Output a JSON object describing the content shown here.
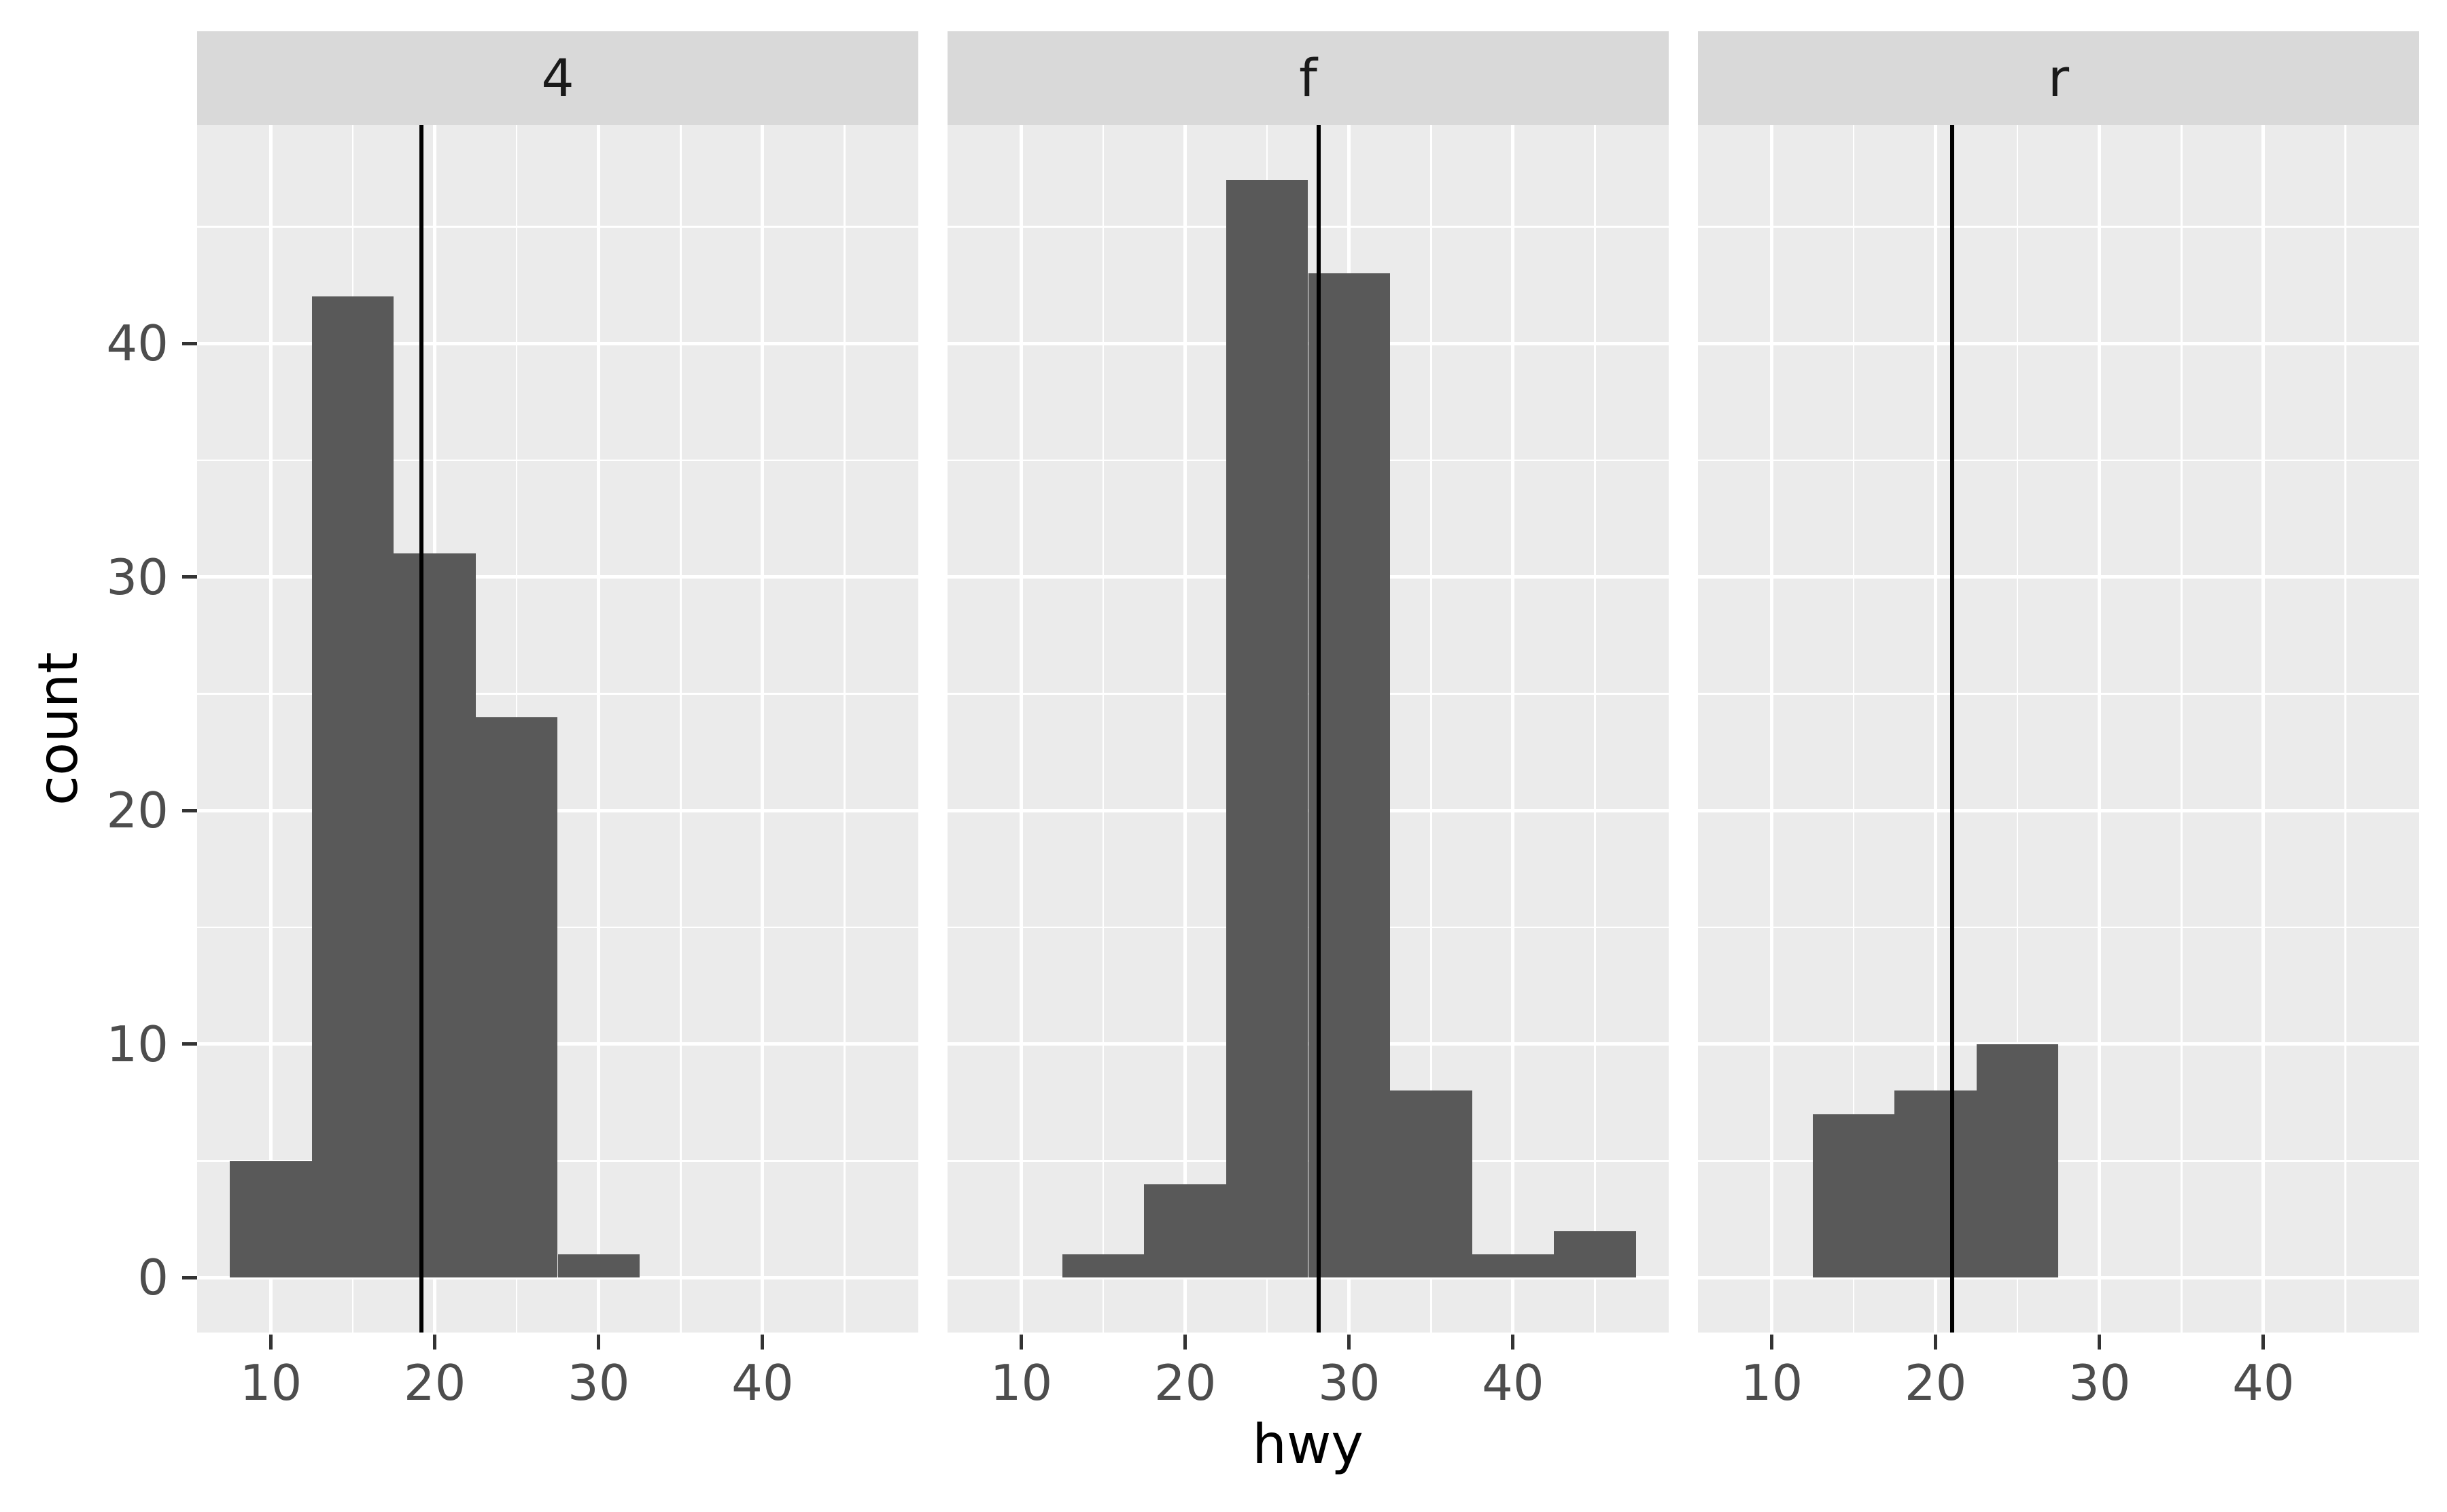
{
  "chart_data": {
    "type": "bar",
    "subtype": "faceted-histogram",
    "title": "",
    "xlabel": "hwy",
    "ylabel": "count",
    "facet_variable_values": [
      "4",
      "f",
      "r"
    ],
    "x_domain": [
      5.5,
      49.5
    ],
    "y_domain": [
      -2.35,
      49.35
    ],
    "x_major_ticks": [
      10,
      20,
      30,
      40
    ],
    "x_minor_gridlines": [
      15,
      25,
      35,
      45
    ],
    "y_major_ticks": [
      0,
      10,
      20,
      30,
      40
    ],
    "y_minor_gridlines": [
      5,
      15,
      25,
      35,
      45
    ],
    "binwidth": 5,
    "grid": "on",
    "legend": "none",
    "facets": [
      {
        "label": "4",
        "bins_start": 7.5,
        "bin_edges": [
          7.5,
          12.5,
          17.5,
          22.5,
          27.5,
          32.5
        ],
        "counts": [
          5,
          42,
          31,
          24,
          1
        ],
        "mean_line_x": 19.17
      },
      {
        "label": "f",
        "bins_start": 12.5,
        "bin_edges": [
          12.5,
          17.5,
          22.5,
          27.5,
          32.5,
          37.5,
          42.5,
          47.5
        ],
        "counts": [
          1,
          4,
          47,
          43,
          8,
          1,
          2
        ],
        "mean_line_x": 28.16
      },
      {
        "label": "r",
        "bins_start": 12.5,
        "bin_edges": [
          12.5,
          17.5,
          22.5,
          27.5
        ],
        "counts": [
          7,
          8,
          10
        ],
        "mean_line_x": 21.0
      }
    ],
    "colors": {
      "bar_fill": "#595959",
      "panel_background": "#EBEBEB",
      "strip_background": "#D9D9D9",
      "grid": "#FFFFFF",
      "mean_line": "#000000",
      "axis_tick": "#333333",
      "tick_label": "#4D4D4D",
      "strip_label": "#1A1A1A",
      "axis_title": "#000000",
      "figure_background": "#FFFFFF"
    }
  }
}
